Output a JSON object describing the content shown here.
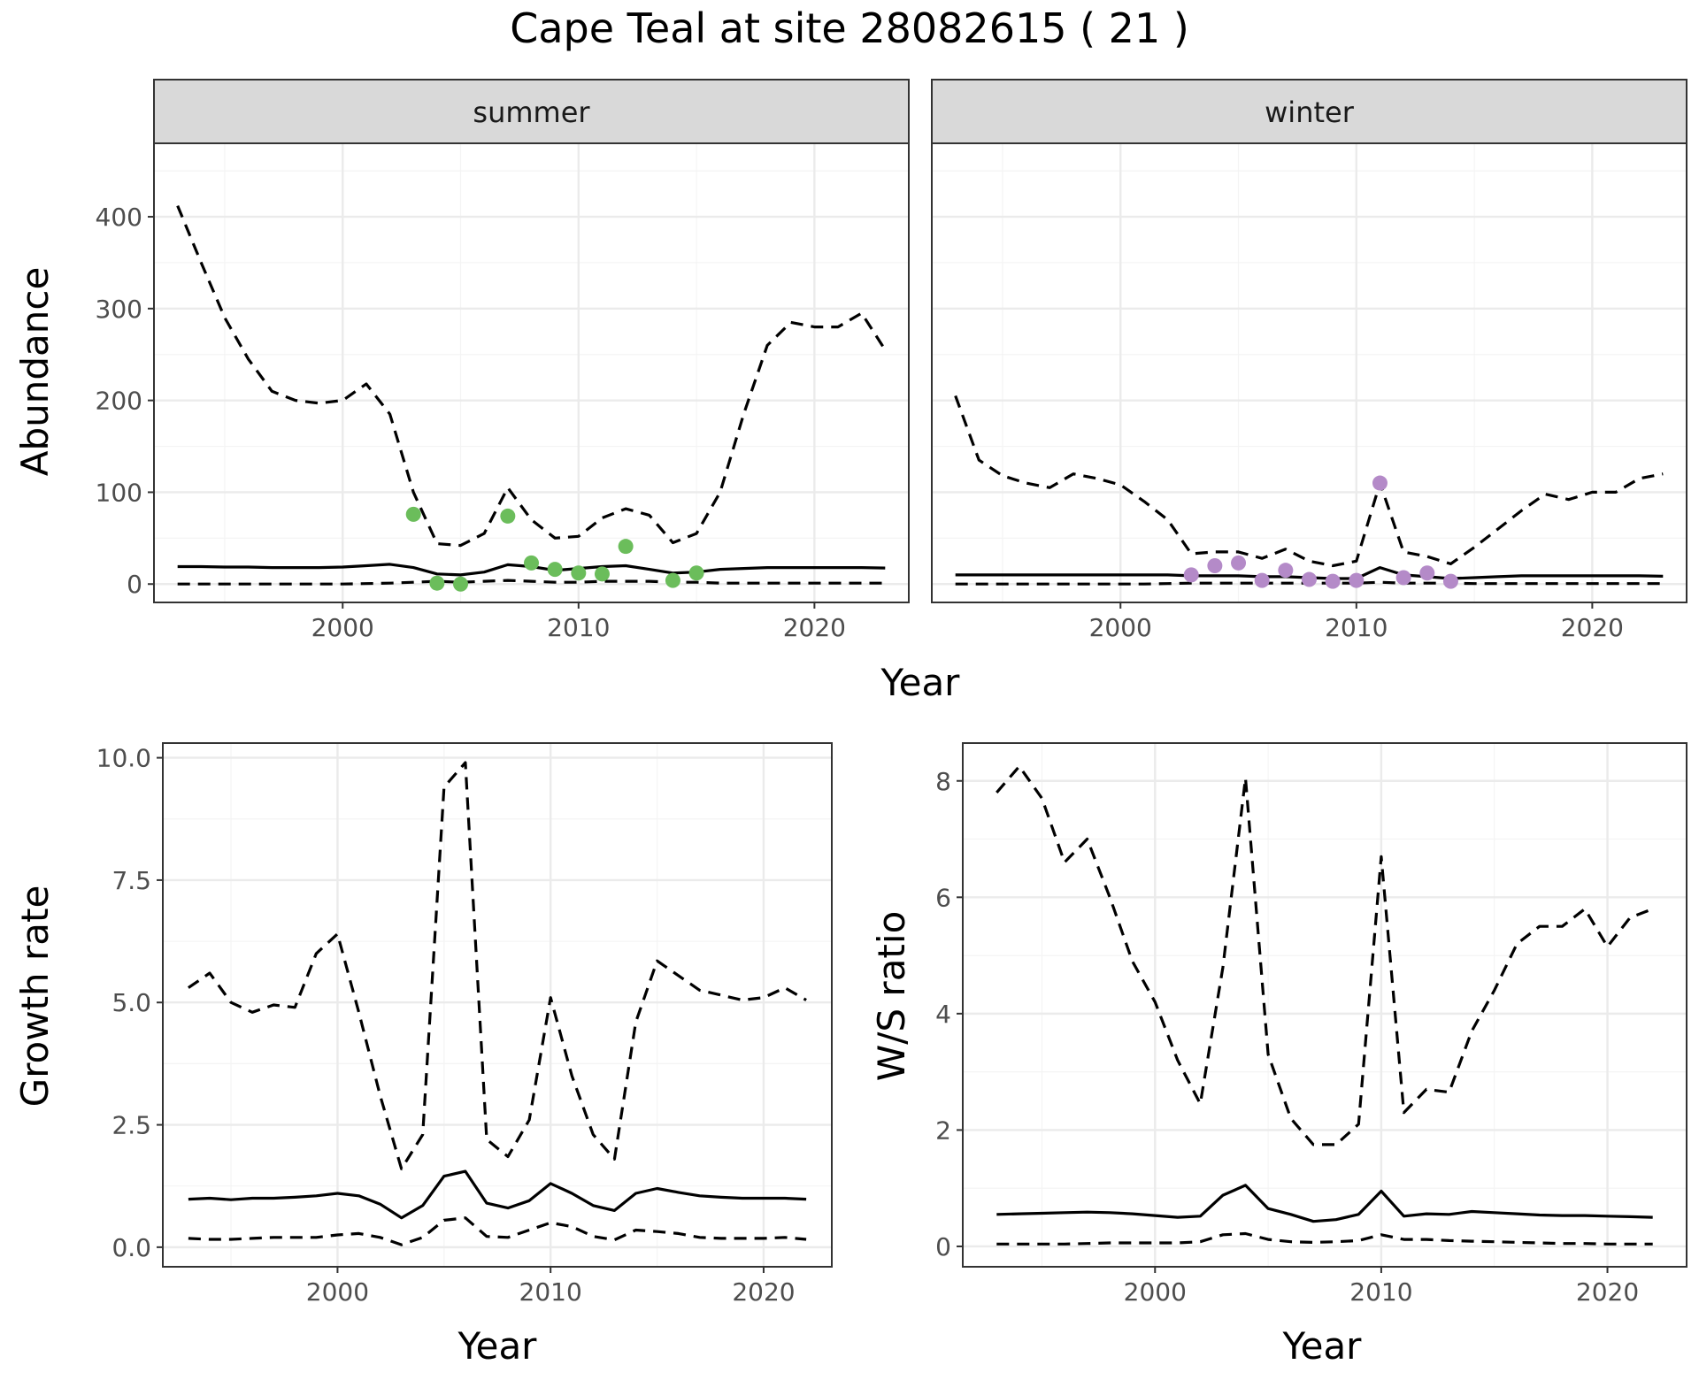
{
  "title": "Cape Teal at site 28082615 ( 21 )",
  "colors": {
    "summer_points": "#6bbd5b",
    "winter_points": "#b48ac8",
    "lines": "#000000"
  },
  "chart_data": [
    {
      "id": "abundance_summer",
      "type": "line",
      "facet_label": "summer",
      "xlabel": "Year",
      "ylabel": "Abundance",
      "xlim": [
        1992,
        2024
      ],
      "ylim": [
        -20,
        480
      ],
      "xticks": [
        2000,
        2010,
        2020
      ],
      "yticks": [
        0,
        100,
        200,
        300,
        400
      ],
      "x": [
        1993,
        1994,
        1995,
        1996,
        1997,
        1998,
        1999,
        2000,
        2001,
        2002,
        2003,
        2004,
        2005,
        2006,
        2007,
        2008,
        2009,
        2010,
        2011,
        2012,
        2013,
        2014,
        2015,
        2016,
        2017,
        2018,
        2019,
        2020,
        2021,
        2022,
        2023
      ],
      "series": [
        {
          "role": "mean",
          "style": "solid",
          "values": [
            19,
            19,
            18.5,
            18.5,
            18,
            18,
            18,
            18.5,
            20,
            21.5,
            18,
            11,
            10,
            13,
            21,
            19,
            15,
            17,
            19,
            20,
            16,
            12,
            13,
            16,
            17,
            18,
            18,
            18,
            18,
            18,
            17.5
          ]
        },
        {
          "role": "upper",
          "style": "dashed",
          "values": [
            412,
            350,
            290,
            245,
            210,
            200,
            197,
            200,
            218,
            185,
            100,
            44,
            42,
            55,
            105,
            70,
            50,
            52,
            72,
            82,
            75,
            45,
            55,
            100,
            185,
            260,
            285,
            280,
            280,
            295,
            255
          ]
        },
        {
          "role": "lower",
          "style": "dashed",
          "values": [
            0,
            0,
            0,
            0,
            0,
            0,
            0,
            0,
            0.5,
            1,
            2,
            3,
            2,
            3,
            4,
            3,
            2,
            2,
            3,
            3,
            3,
            2,
            2,
            1,
            1,
            1,
            1,
            1,
            1,
            1,
            1
          ]
        }
      ],
      "points": {
        "x": [
          2003,
          2004,
          2005,
          2007,
          2008,
          2009,
          2010,
          2011,
          2012,
          2014,
          2015
        ],
        "y": [
          76,
          1,
          0,
          74,
          23,
          16,
          12,
          11,
          41,
          4,
          12
        ]
      }
    },
    {
      "id": "abundance_winter",
      "type": "line",
      "facet_label": "winter",
      "xlabel": "Year",
      "ylabel": "Abundance",
      "xlim": [
        1992,
        2024
      ],
      "ylim": [
        -20,
        480
      ],
      "xticks": [
        2000,
        2010,
        2020
      ],
      "yticks": [
        0,
        100,
        200,
        300,
        400
      ],
      "x": [
        1993,
        1994,
        1995,
        1996,
        1997,
        1998,
        1999,
        2000,
        2001,
        2002,
        2003,
        2004,
        2005,
        2006,
        2007,
        2008,
        2009,
        2010,
        2011,
        2012,
        2013,
        2014,
        2015,
        2016,
        2017,
        2018,
        2019,
        2020,
        2021,
        2022,
        2023
      ],
      "series": [
        {
          "role": "mean",
          "style": "solid",
          "values": [
            10,
            10,
            10,
            10,
            10,
            10,
            10,
            10,
            10,
            10,
            9,
            9,
            9,
            8,
            8,
            7,
            6,
            6,
            18,
            10,
            8,
            6,
            7,
            8,
            9,
            9,
            9,
            9,
            9,
            9,
            8.5
          ]
        },
        {
          "role": "upper",
          "style": "dashed",
          "values": [
            205,
            135,
            118,
            110,
            105,
            120,
            115,
            108,
            90,
            70,
            33,
            35,
            35,
            28,
            38,
            25,
            20,
            25,
            110,
            35,
            30,
            22,
            40,
            60,
            80,
            98,
            92,
            100,
            100,
            115,
            120
          ]
        },
        {
          "role": "lower",
          "style": "dashed",
          "values": [
            0,
            0,
            0,
            0,
            0,
            0,
            0,
            0,
            0,
            0.5,
            1,
            1,
            1,
            1,
            1,
            1,
            1,
            1,
            2,
            1,
            1,
            1,
            0.5,
            0.5,
            0.5,
            0.5,
            0.5,
            0.5,
            0.5,
            0.5,
            0.5
          ]
        }
      ],
      "points": {
        "x": [
          2003,
          2004,
          2005,
          2006,
          2007,
          2008,
          2009,
          2010,
          2011,
          2012,
          2013,
          2014
        ],
        "y": [
          10,
          20,
          23,
          4,
          15,
          5,
          3,
          4,
          110,
          7,
          12,
          3
        ]
      }
    },
    {
      "id": "growth_rate",
      "type": "line",
      "xlabel": "Year",
      "ylabel": "Growth rate",
      "xlim": [
        1991.8,
        2023.2
      ],
      "ylim": [
        -0.4,
        10.3
      ],
      "xticks": [
        2000,
        2010,
        2020
      ],
      "yticks": [
        0.0,
        2.5,
        5.0,
        7.5,
        10.0
      ],
      "ytick_labels": [
        "0.0",
        "2.5",
        "5.0",
        "7.5",
        "10.0"
      ],
      "x": [
        1993,
        1994,
        1995,
        1996,
        1997,
        1998,
        1999,
        2000,
        2001,
        2002,
        2003,
        2004,
        2005,
        2006,
        2007,
        2008,
        2009,
        2010,
        2011,
        2012,
        2013,
        2014,
        2015,
        2016,
        2017,
        2018,
        2019,
        2020,
        2021,
        2022
      ],
      "series": [
        {
          "role": "mean",
          "style": "solid",
          "values": [
            0.98,
            1.0,
            0.97,
            1.0,
            1.0,
            1.02,
            1.05,
            1.1,
            1.05,
            0.88,
            0.6,
            0.85,
            1.45,
            1.55,
            0.9,
            0.8,
            0.95,
            1.3,
            1.1,
            0.85,
            0.75,
            1.1,
            1.2,
            1.12,
            1.05,
            1.02,
            1.0,
            1.0,
            1.0,
            0.98
          ]
        },
        {
          "role": "upper",
          "style": "dashed",
          "values": [
            5.3,
            5.6,
            5.0,
            4.8,
            4.95,
            4.9,
            6.0,
            6.4,
            4.8,
            3.1,
            1.6,
            2.3,
            9.4,
            9.9,
            2.2,
            1.85,
            2.6,
            5.1,
            3.5,
            2.3,
            1.8,
            4.6,
            5.85,
            5.55,
            5.25,
            5.15,
            5.05,
            5.1,
            5.3,
            5.05
          ]
        },
        {
          "role": "lower",
          "style": "dashed",
          "values": [
            0.18,
            0.16,
            0.16,
            0.18,
            0.2,
            0.2,
            0.2,
            0.25,
            0.28,
            0.2,
            0.05,
            0.2,
            0.55,
            0.6,
            0.22,
            0.2,
            0.35,
            0.5,
            0.42,
            0.22,
            0.15,
            0.35,
            0.32,
            0.28,
            0.2,
            0.18,
            0.18,
            0.18,
            0.2,
            0.16
          ]
        }
      ]
    },
    {
      "id": "ws_ratio",
      "type": "line",
      "xlabel": "Year",
      "ylabel": "W/S ratio",
      "xlim": [
        1991.5,
        2023.5
      ],
      "ylim": [
        -0.35,
        8.65
      ],
      "xticks": [
        2000,
        2010,
        2020
      ],
      "yticks": [
        0,
        2,
        4,
        6,
        8
      ],
      "x": [
        1993,
        1994,
        1995,
        1996,
        1997,
        1998,
        1999,
        2000,
        2001,
        2002,
        2003,
        2004,
        2005,
        2006,
        2007,
        2008,
        2009,
        2010,
        2011,
        2012,
        2013,
        2014,
        2015,
        2016,
        2017,
        2018,
        2019,
        2020,
        2021,
        2022
      ],
      "series": [
        {
          "role": "mean",
          "style": "solid",
          "values": [
            0.55,
            0.56,
            0.57,
            0.58,
            0.59,
            0.58,
            0.56,
            0.53,
            0.5,
            0.52,
            0.88,
            1.05,
            0.65,
            0.55,
            0.43,
            0.46,
            0.55,
            0.95,
            0.52,
            0.56,
            0.55,
            0.6,
            0.58,
            0.56,
            0.54,
            0.53,
            0.53,
            0.52,
            0.51,
            0.5
          ]
        },
        {
          "role": "upper",
          "style": "dashed",
          "values": [
            7.8,
            8.25,
            7.7,
            6.6,
            7.0,
            6.0,
            4.9,
            4.2,
            3.2,
            2.45,
            4.8,
            8.05,
            3.3,
            2.2,
            1.75,
            1.75,
            2.1,
            6.7,
            2.3,
            2.7,
            2.65,
            3.7,
            4.4,
            5.2,
            5.5,
            5.5,
            5.8,
            5.15,
            5.65,
            5.8
          ]
        },
        {
          "role": "lower",
          "style": "dashed",
          "values": [
            0.04,
            0.04,
            0.04,
            0.04,
            0.05,
            0.06,
            0.06,
            0.06,
            0.06,
            0.08,
            0.2,
            0.22,
            0.12,
            0.08,
            0.07,
            0.08,
            0.1,
            0.2,
            0.12,
            0.12,
            0.1,
            0.09,
            0.08,
            0.07,
            0.06,
            0.05,
            0.05,
            0.04,
            0.04,
            0.04
          ]
        }
      ]
    }
  ]
}
